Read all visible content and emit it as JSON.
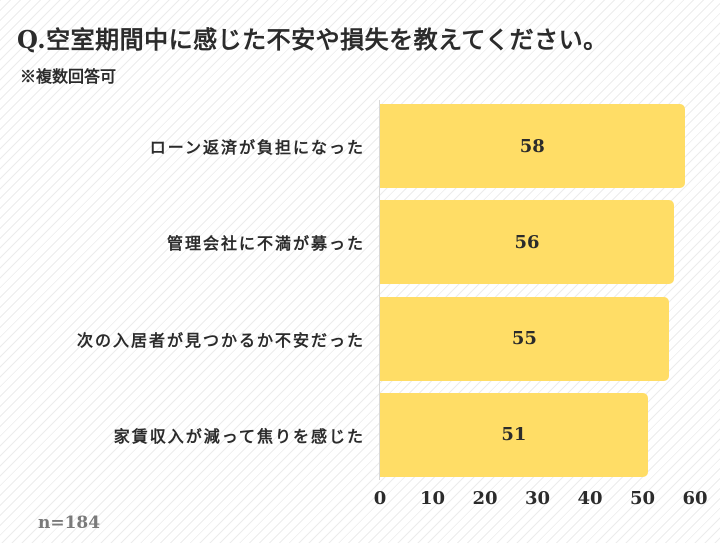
{
  "title": "Q.空室期間中に感じた不安や損失を教えてください。",
  "subtitle": "※複数回答可",
  "sample": "n=184",
  "bar_color": "#ffdd66",
  "chart_data": {
    "type": "bar",
    "orientation": "horizontal",
    "categories": [
      "ローン返済が負担になった",
      "管理会社に不満が募った",
      "次の入居者が見つかるか不安だった",
      "家賃収入が減って焦りを感じた"
    ],
    "values": [
      58,
      56,
      55,
      51
    ],
    "xlim": [
      0,
      60
    ],
    "xticks": [
      "0",
      "10",
      "20",
      "30",
      "40",
      "50",
      "60"
    ],
    "grid": false,
    "legend": "none"
  }
}
